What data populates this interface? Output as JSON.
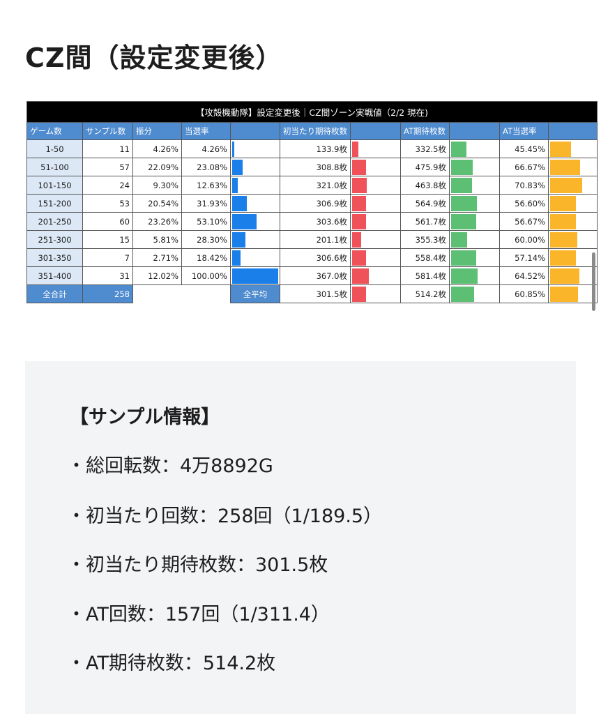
{
  "heading": "CZ間（設定変更後）",
  "table": {
    "title": "【攻殻機動隊】設定変更後｜CZ間ゾーン実戦値（2/2 現在)",
    "headers": [
      "ゲーム数",
      "サンプル数",
      "振分",
      "当選率",
      "初当たり期待枚数",
      "AT期待枚数",
      "AT当選率"
    ],
    "rows": [
      [
        "1-50",
        11,
        "4.26%",
        {
          "value": 4.26,
          "label": "4.26%"
        },
        {
          "value": 133.9,
          "label": "133.9枚"
        },
        {
          "value": 332.5,
          "label": "332.5枚"
        },
        {
          "value": 45.45,
          "label": "45.45%"
        }
      ],
      [
        "51-100",
        57,
        "22.09%",
        {
          "value": 23.08,
          "label": "23.08%"
        },
        {
          "value": 308.8,
          "label": "308.8枚"
        },
        {
          "value": 475.9,
          "label": "475.9枚"
        },
        {
          "value": 66.67,
          "label": "66.67%"
        }
      ],
      [
        "101-150",
        24,
        "9.30%",
        {
          "value": 12.63,
          "label": "12.63%"
        },
        {
          "value": 321.0,
          "label": "321.0枚"
        },
        {
          "value": 463.8,
          "label": "463.8枚"
        },
        {
          "value": 70.83,
          "label": "70.83%"
        }
      ],
      [
        "151-200",
        53,
        "20.54%",
        {
          "value": 31.93,
          "label": "31.93%"
        },
        {
          "value": 306.9,
          "label": "306.9枚"
        },
        {
          "value": 564.9,
          "label": "564.9枚"
        },
        {
          "value": 56.6,
          "label": "56.60%"
        }
      ],
      [
        "201-250",
        60,
        "23.26%",
        {
          "value": 53.1,
          "label": "53.10%"
        },
        {
          "value": 303.6,
          "label": "303.6枚"
        },
        {
          "value": 561.7,
          "label": "561.7枚"
        },
        {
          "value": 56.67,
          "label": "56.67%"
        }
      ],
      [
        "251-300",
        15,
        "5.81%",
        {
          "value": 28.3,
          "label": "28.30%"
        },
        {
          "value": 201.1,
          "label": "201.1枚"
        },
        {
          "value": 355.3,
          "label": "355.3枚"
        },
        {
          "value": 60.0,
          "label": "60.00%"
        }
      ],
      [
        "301-350",
        7,
        "2.71%",
        {
          "value": 18.42,
          "label": "18.42%"
        },
        {
          "value": 306.6,
          "label": "306.6枚"
        },
        {
          "value": 558.4,
          "label": "558.4枚"
        },
        {
          "value": 57.14,
          "label": "57.14%"
        }
      ],
      [
        "351-400",
        31,
        "12.02%",
        {
          "value": 100.0,
          "label": "100.00%"
        },
        {
          "value": 367.0,
          "label": "367.0枚"
        },
        {
          "value": 581.4,
          "label": "581.4枚"
        },
        {
          "value": 64.52,
          "label": "64.52%"
        }
      ]
    ],
    "summary": {
      "total_label": "全合計",
      "samples": 258,
      "average_label": "全平均",
      "first": {
        "value": 301.5,
        "label": "301.5枚"
      },
      "at": {
        "value": 514.2,
        "label": "514.2枚"
      },
      "atrate": {
        "value": 60.85,
        "label": "60.85%"
      }
    }
  },
  "sample_info": {
    "title": "【サンプル情報】",
    "items": [
      "・総回転数：4万8892G",
      "・初当たり回数：258回（1/189.5）",
      "・初当たり期待枚数：301.5枚",
      "・AT回数：157回（1/311.4）",
      "・AT期待枚数：514.2枚"
    ]
  }
}
